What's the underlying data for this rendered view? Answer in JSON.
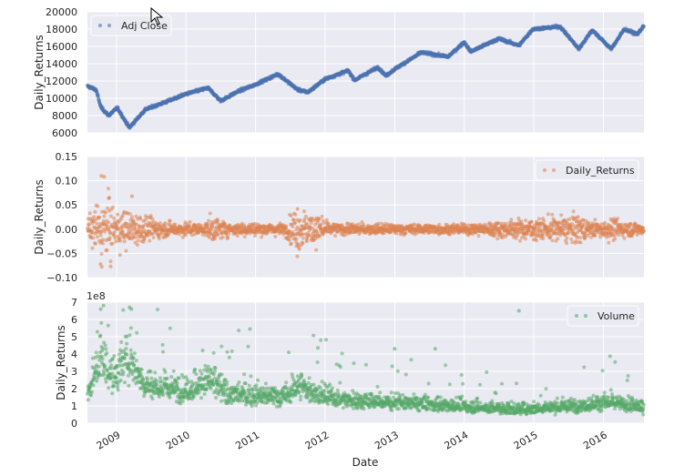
{
  "figure": {
    "xlabel": "Date",
    "x_range": [
      "2008-08-01",
      "2016-08-01"
    ],
    "x_ticks": [
      "2009-01-01",
      "2010-01-01",
      "2011-01-01",
      "2012-01-01",
      "2013-01-01",
      "2014-01-01",
      "2015-01-01",
      "2016-01-01"
    ],
    "x_tick_labels": [
      "2009",
      "2010",
      "2011",
      "2012",
      "2013",
      "2014",
      "2015",
      "2016"
    ],
    "background": "#EAEAF2",
    "grid_color": "#FFFFFF"
  },
  "chart_data": [
    {
      "type": "scatter",
      "name": "Adj Close",
      "color": "#4C72B0",
      "ylabel": "Daily_Returns",
      "ylim": [
        6000,
        20000
      ],
      "y_ticks": [
        6000,
        8000,
        10000,
        12000,
        14000,
        16000,
        18000,
        20000
      ],
      "y_tick_labels": [
        "6000",
        "8000",
        "10000",
        "12000",
        "14000",
        "16000",
        "18000",
        "20000"
      ],
      "legend": "Adj Close",
      "legend_loc": "upper left",
      "grid": true,
      "trend": [
        [
          "2008-08-01",
          11400
        ],
        [
          "2008-09-15",
          11000
        ],
        [
          "2008-10-10",
          9000
        ],
        [
          "2008-11-20",
          8000
        ],
        [
          "2009-01-05",
          8900
        ],
        [
          "2009-03-09",
          6600
        ],
        [
          "2009-06-01",
          8700
        ],
        [
          "2009-10-01",
          9700
        ],
        [
          "2010-01-01",
          10500
        ],
        [
          "2010-04-26",
          11200
        ],
        [
          "2010-07-02",
          9700
        ],
        [
          "2010-10-01",
          10800
        ],
        [
          "2011-01-01",
          11600
        ],
        [
          "2011-04-29",
          12800
        ],
        [
          "2011-08-10",
          11000
        ],
        [
          "2011-10-03",
          10700
        ],
        [
          "2011-12-30",
          12200
        ],
        [
          "2012-05-01",
          13200
        ],
        [
          "2012-06-04",
          12100
        ],
        [
          "2012-10-05",
          13600
        ],
        [
          "2012-11-15",
          12600
        ],
        [
          "2013-01-02",
          13400
        ],
        [
          "2013-05-20",
          15300
        ],
        [
          "2013-10-08",
          14800
        ],
        [
          "2013-12-31",
          16500
        ],
        [
          "2014-02-03",
          15400
        ],
        [
          "2014-07-01",
          16900
        ],
        [
          "2014-10-15",
          16100
        ],
        [
          "2014-12-26",
          18000
        ],
        [
          "2015-05-19",
          18300
        ],
        [
          "2015-08-25",
          15700
        ],
        [
          "2015-11-03",
          17900
        ],
        [
          "2016-02-11",
          15700
        ],
        [
          "2016-04-20",
          18000
        ],
        [
          "2016-06-27",
          17400
        ],
        [
          "2016-08-01",
          18400
        ]
      ]
    },
    {
      "type": "scatter",
      "name": "Daily_Returns",
      "color": "#DD8452",
      "ylabel": "Daily_Returns",
      "ylim": [
        -0.1,
        0.15
      ],
      "y_ticks": [
        -0.1,
        -0.05,
        0.0,
        0.05,
        0.1,
        0.15
      ],
      "y_tick_labels": [
        "−0.10",
        "−0.05",
        "0.00",
        "0.05",
        "0.10",
        "0.15"
      ],
      "legend": "Daily_Returns",
      "legend_loc": "upper right",
      "grid": true,
      "volatility": [
        [
          "2008-08-01",
          0.012
        ],
        [
          "2008-09-15",
          0.035
        ],
        [
          "2008-10-20",
          0.045
        ],
        [
          "2008-12-15",
          0.03
        ],
        [
          "2009-04-01",
          0.025
        ],
        [
          "2009-08-01",
          0.012
        ],
        [
          "2010-04-01",
          0.008
        ],
        [
          "2010-05-15",
          0.018
        ],
        [
          "2010-08-01",
          0.01
        ],
        [
          "2011-06-01",
          0.008
        ],
        [
          "2011-08-10",
          0.03
        ],
        [
          "2011-11-30",
          0.02
        ],
        [
          "2012-02-01",
          0.008
        ],
        [
          "2013-01-01",
          0.007
        ],
        [
          "2014-01-01",
          0.007
        ],
        [
          "2015-08-24",
          0.02
        ],
        [
          "2015-11-01",
          0.01
        ],
        [
          "2016-01-20",
          0.015
        ],
        [
          "2016-08-01",
          0.008
        ]
      ],
      "outliers": [
        [
          "2008-10-13",
          0.11
        ],
        [
          "2008-10-28",
          0.108
        ],
        [
          "2008-11-24",
          0.065
        ],
        [
          "2008-11-21",
          0.064
        ],
        [
          "2009-03-23",
          0.068
        ],
        [
          "2008-10-15",
          -0.078
        ],
        [
          "2008-12-01",
          -0.077
        ],
        [
          "2008-10-09",
          -0.072
        ],
        [
          "2011-08-08",
          -0.056
        ],
        [
          "2011-08-09",
          0.042
        ]
      ]
    },
    {
      "type": "scatter",
      "name": "Volume",
      "color": "#55A868",
      "ylabel": "Daily_Returns",
      "ylim": [
        0,
        7
      ],
      "y_ticks": [
        0,
        1,
        2,
        3,
        4,
        5,
        6,
        7
      ],
      "y_tick_labels": [
        "0",
        "1",
        "2",
        "3",
        "4",
        "5",
        "6",
        "7"
      ],
      "offset_text": "1e8",
      "legend": "Volume",
      "legend_loc": "upper right",
      "grid": true,
      "trend": [
        [
          "2008-08-01",
          1.7
        ],
        [
          "2008-10-10",
          3.8
        ],
        [
          "2008-12-15",
          2.6
        ],
        [
          "2009-03-15",
          3.8
        ],
        [
          "2009-06-01",
          2.2
        ],
        [
          "2010-01-01",
          1.9
        ],
        [
          "2010-05-10",
          2.5
        ],
        [
          "2010-08-01",
          1.7
        ],
        [
          "2011-06-01",
          1.5
        ],
        [
          "2011-08-10",
          2.2
        ],
        [
          "2011-12-01",
          1.6
        ],
        [
          "2012-06-01",
          1.3
        ],
        [
          "2013-06-01",
          1.1
        ],
        [
          "2014-06-01",
          0.85
        ],
        [
          "2014-10-15",
          0.8
        ],
        [
          "2015-08-24",
          1.0
        ],
        [
          "2016-01-20",
          1.2
        ],
        [
          "2016-08-01",
          0.9
        ]
      ],
      "outliers": [
        [
          "2008-10-10",
          6.6
        ],
        [
          "2008-10-24",
          6.8
        ],
        [
          "2009-03-10",
          6.7
        ],
        [
          "2009-03-20",
          6.6
        ],
        [
          "2014-10-15",
          6.5
        ],
        [
          "2012-12-31",
          4.3
        ],
        [
          "2013-08-01",
          4.3
        ]
      ]
    }
  ]
}
